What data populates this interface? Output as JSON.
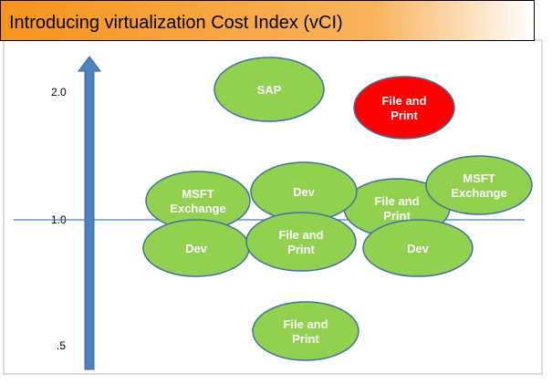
{
  "header": {
    "title": "Introducing virtualization Cost Index (vCI)"
  },
  "axis": {
    "labels": [
      "2.0",
      "1.0",
      ".5"
    ]
  },
  "nodes": [
    {
      "label": [
        "SAP"
      ]
    },
    {
      "label": [
        "File and",
        "Print"
      ]
    },
    {
      "label": [
        "File and",
        "Print"
      ]
    },
    {
      "label": [
        "MSFT",
        "Exchange"
      ]
    },
    {
      "label": [
        "Dev"
      ]
    },
    {
      "label": [
        "MSFT",
        "Exchange"
      ]
    },
    {
      "label": [
        "Dev"
      ]
    },
    {
      "label": [
        "File and",
        "Print"
      ]
    },
    {
      "label": [
        "Dev"
      ]
    },
    {
      "label": [
        "File and",
        "Print"
      ]
    }
  ]
}
